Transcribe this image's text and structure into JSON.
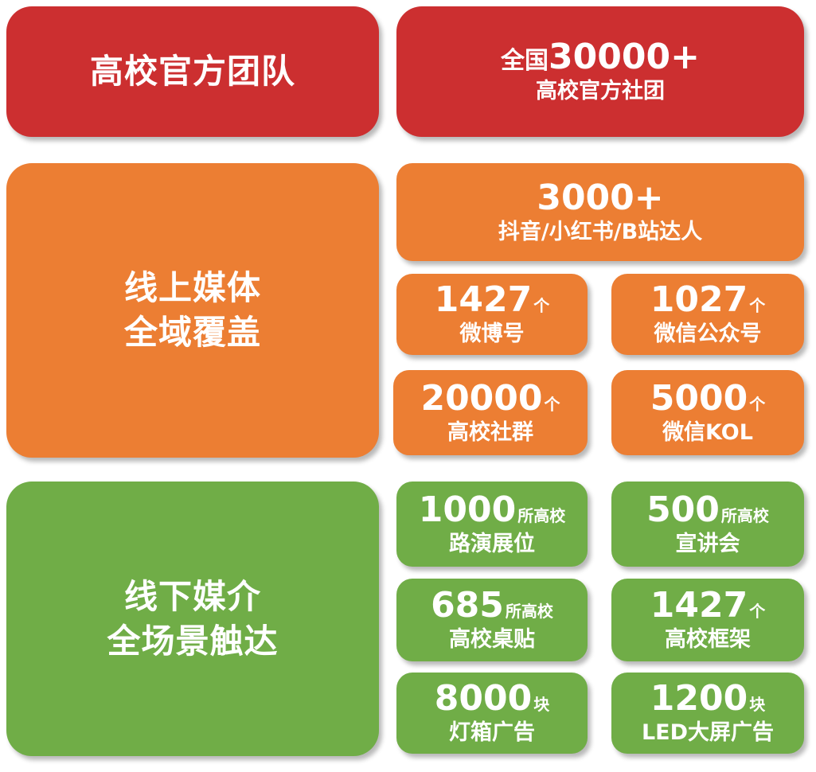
{
  "colors": {
    "red": "#cc2f30",
    "orange": "#ec7e33",
    "green": "#70ad47"
  },
  "team": {
    "title": "高校官方团队",
    "stat_prefix": "全国",
    "stat_number": "30000+",
    "stat_label": "高校官方社团"
  },
  "online": {
    "title_line1": "线上媒体",
    "title_line2": "全域覆盖",
    "items": [
      {
        "number": "3000+",
        "unit": "",
        "label": "抖音/小红书/B站达人"
      },
      {
        "number": "1427",
        "unit": "个",
        "label": "微博号"
      },
      {
        "number": "1027",
        "unit": "个",
        "label": "微信公众号"
      },
      {
        "number": "20000",
        "unit": "个",
        "label": "高校社群"
      },
      {
        "number": "5000",
        "unit": "个",
        "label": "微信KOL"
      }
    ]
  },
  "offline": {
    "title_line1": "线下媒介",
    "title_line2": "全场景触达",
    "items": [
      {
        "number": "1000",
        "unit": "所高校",
        "label": "路演展位"
      },
      {
        "number": "500",
        "unit": "所高校",
        "label": "宣讲会"
      },
      {
        "number": "685",
        "unit": "所高校",
        "label": "高校桌贴"
      },
      {
        "number": "1427",
        "unit": "个",
        "label": "高校框架"
      },
      {
        "number": "8000",
        "unit": "块",
        "label": "灯箱广告"
      },
      {
        "number": "1200",
        "unit": "块",
        "label": "LED大屏广告"
      }
    ]
  }
}
